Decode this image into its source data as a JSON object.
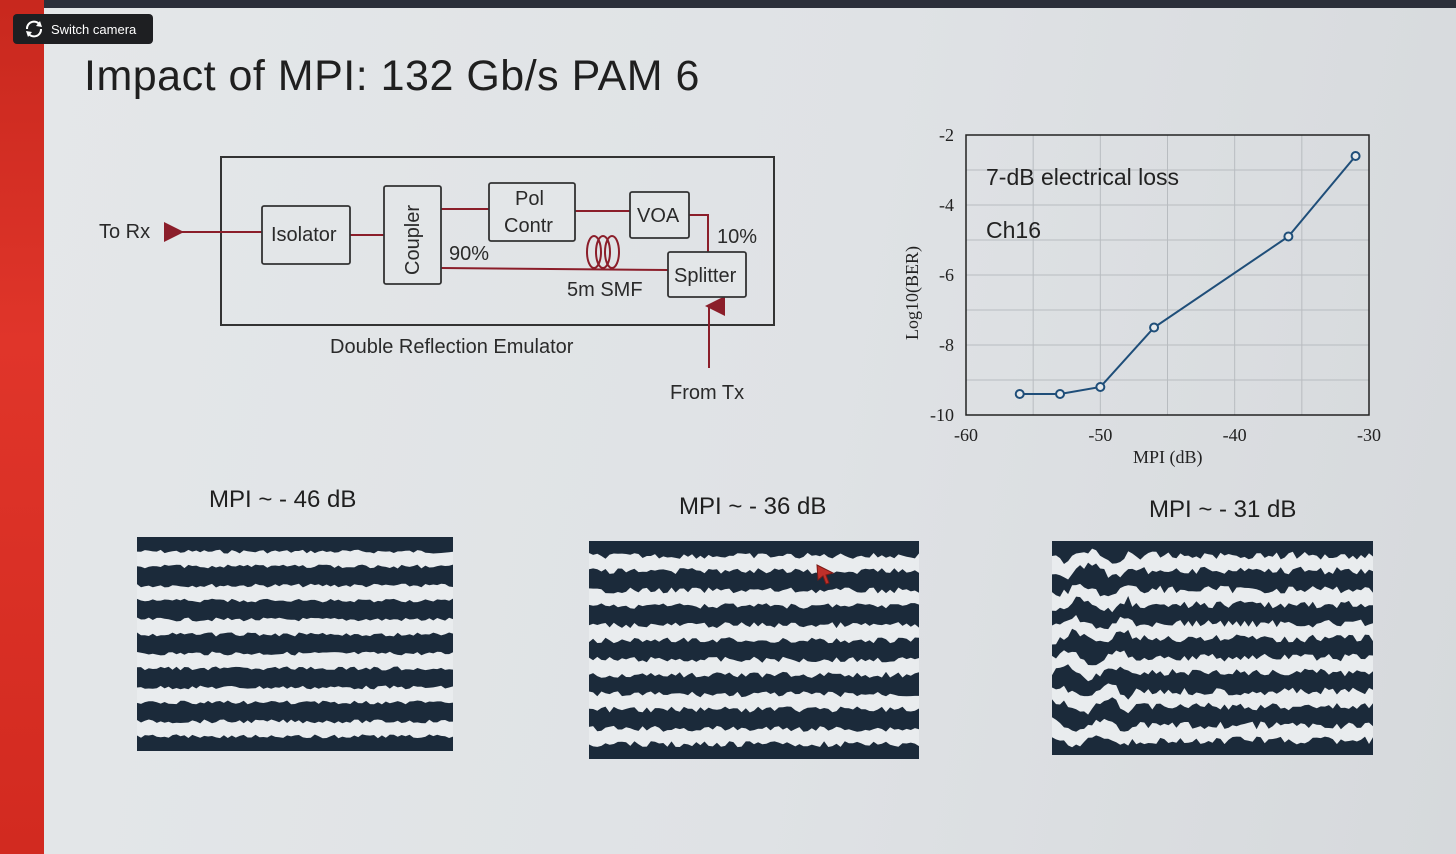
{
  "overlay": {
    "switch_camera_label": "Switch camera",
    "icon": "camera-switch-icon"
  },
  "slide": {
    "title": "Impact of MPI: 132 Gb/s PAM 6"
  },
  "diagram": {
    "to_rx": "To Rx",
    "isolator": "Isolator",
    "coupler": "Coupler",
    "pol_contr_line1": "Pol",
    "pol_contr_line2": "Contr",
    "voa": "VOA",
    "pct_90": "90%",
    "pct_10": "10%",
    "splitter": "Splitter",
    "smf": "5m SMF",
    "caption": "Double Reflection Emulator",
    "from_tx": "From Tx",
    "line_color": "#8b1e2a"
  },
  "chart_data": {
    "type": "line",
    "annotation1": "7-dB electrical loss",
    "annotation2": "Ch16",
    "xlabel": "MPI (dB)",
    "ylabel": "Log10(BER)",
    "xlim": [
      -60,
      -30
    ],
    "ylim": [
      -10,
      -2
    ],
    "xticks": [
      "-60",
      "-50",
      "-40",
      "-30"
    ],
    "yticks": [
      "-2",
      "-4",
      "-6",
      "-8",
      "-10"
    ],
    "grid": true,
    "series_color": "#1f4e79",
    "x": [
      -56,
      -53,
      -50,
      -46,
      -36,
      -31
    ],
    "y": [
      -9.4,
      -9.4,
      -9.2,
      -7.5,
      -4.9,
      -2.6
    ]
  },
  "eyes": [
    {
      "label": "MPI ~ - 46 dB"
    },
    {
      "label": "MPI ~ - 36 dB"
    },
    {
      "label": "MPI ~ - 31 dB"
    }
  ]
}
